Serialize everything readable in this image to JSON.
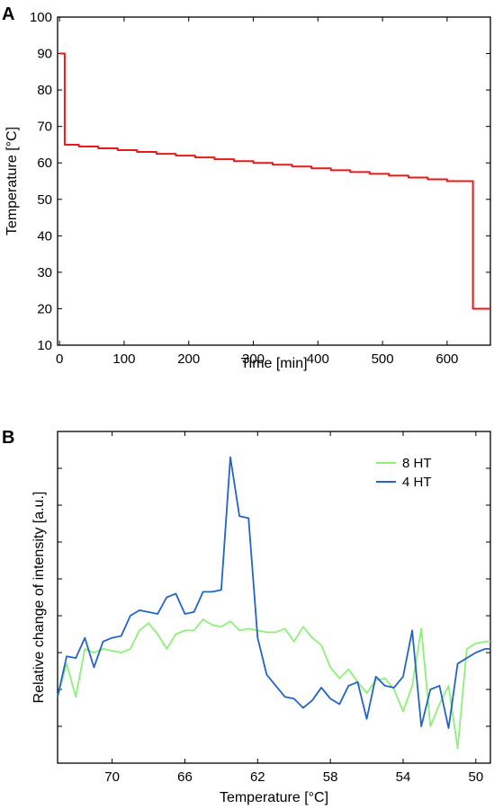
{
  "chart_data": [
    {
      "panel": "A",
      "type": "line",
      "step": true,
      "xlabel": "Time [min]",
      "ylabel": "Temperature [°C]",
      "xlim": [
        -3,
        667
      ],
      "ylim": [
        10,
        100
      ],
      "xticks": [
        0,
        100,
        200,
        300,
        400,
        500,
        600
      ],
      "yticks": [
        10,
        20,
        30,
        40,
        50,
        60,
        70,
        80,
        90,
        100
      ],
      "grid": false,
      "series": [
        {
          "color": "#e8191a",
          "x": [
            0,
            8,
            8,
            30,
            30,
            60,
            60,
            90,
            90,
            120,
            120,
            150,
            150,
            180,
            180,
            210,
            210,
            240,
            240,
            270,
            270,
            300,
            300,
            330,
            330,
            360,
            360,
            390,
            390,
            420,
            420,
            450,
            450,
            480,
            480,
            510,
            510,
            540,
            540,
            570,
            570,
            600,
            600,
            640,
            640,
            667
          ],
          "y": [
            90,
            90,
            65,
            65,
            64.5,
            64.5,
            64,
            64,
            63.5,
            63.5,
            63,
            63,
            62.5,
            62.5,
            62,
            62,
            61.5,
            61.5,
            61,
            61,
            60.5,
            60.5,
            60,
            60,
            59.5,
            59.5,
            59,
            59,
            58.5,
            58.5,
            58,
            58,
            57.5,
            57.5,
            57,
            57,
            56.5,
            56.5,
            56,
            56,
            55.5,
            55.5,
            55,
            55,
            20,
            20
          ]
        }
      ]
    },
    {
      "panel": "B",
      "type": "line",
      "xlabel": "Temperature [°C]",
      "ylabel": "Relative change of  intensity [a.u.]",
      "xlim": [
        73,
        49.2
      ],
      "ylim": [
        0,
        9
      ],
      "xticks": [
        70,
        66,
        62,
        58,
        54,
        50
      ],
      "y_tick_labels": false,
      "legend_position": "top-right",
      "grid": false,
      "series": [
        {
          "name": "8 HT",
          "color": "#8ef07a",
          "x": [
            73,
            72.5,
            72,
            71.5,
            71,
            70.5,
            70,
            69.5,
            69,
            68.5,
            68,
            67.5,
            67,
            66.5,
            66,
            65.5,
            65,
            64.5,
            64,
            63.5,
            63,
            62.5,
            62,
            61.5,
            61,
            60.5,
            60,
            59.5,
            59,
            58.5,
            58,
            57.5,
            57,
            56.5,
            56,
            55.5,
            55,
            54.5,
            54,
            53.5,
            53,
            52.5,
            52,
            51.5,
            51,
            50.5,
            50,
            49.5,
            49.2
          ],
          "y": [
            1.8,
            2.7,
            1.8,
            3.1,
            3.0,
            3.1,
            3.05,
            3.0,
            3.1,
            3.6,
            3.8,
            3.5,
            3.1,
            3.5,
            3.6,
            3.6,
            3.9,
            3.75,
            3.7,
            3.85,
            3.6,
            3.65,
            3.6,
            3.55,
            3.55,
            3.65,
            3.3,
            3.7,
            3.4,
            3.2,
            2.6,
            2.3,
            2.55,
            2.2,
            1.9,
            2.25,
            2.3,
            2.0,
            1.4,
            2.1,
            3.65,
            1.0,
            1.6,
            2.1,
            0.4,
            3.1,
            3.25,
            3.3,
            3.3
          ]
        },
        {
          "name": "4 HT",
          "color": "#2264c7",
          "x": [
            73,
            72.5,
            72,
            71.5,
            71,
            70.5,
            70,
            69.5,
            69,
            68.5,
            68,
            67.5,
            67,
            66.5,
            66,
            65.5,
            65,
            64.5,
            64,
            63.5,
            63,
            62.5,
            62,
            61.5,
            61,
            60.5,
            60,
            59.5,
            59,
            58.5,
            58,
            57.5,
            57,
            56.5,
            56,
            55.5,
            55,
            54.5,
            54,
            53.5,
            53,
            52.5,
            52,
            51.5,
            51,
            50.5,
            50,
            49.5,
            49.2
          ],
          "y": [
            1.8,
            2.9,
            2.85,
            3.4,
            2.6,
            3.3,
            3.4,
            3.45,
            4.0,
            4.15,
            4.1,
            4.05,
            4.5,
            4.6,
            4.05,
            4.1,
            4.65,
            4.65,
            4.7,
            8.3,
            6.7,
            6.65,
            3.4,
            2.4,
            2.1,
            1.8,
            1.75,
            1.5,
            1.7,
            2.05,
            1.75,
            1.6,
            2.1,
            2.2,
            1.2,
            2.35,
            2.1,
            2.05,
            2.35,
            3.6,
            1.0,
            2.0,
            2.1,
            0.95,
            2.7,
            2.85,
            3.0,
            3.1,
            3.1
          ]
        }
      ]
    }
  ]
}
